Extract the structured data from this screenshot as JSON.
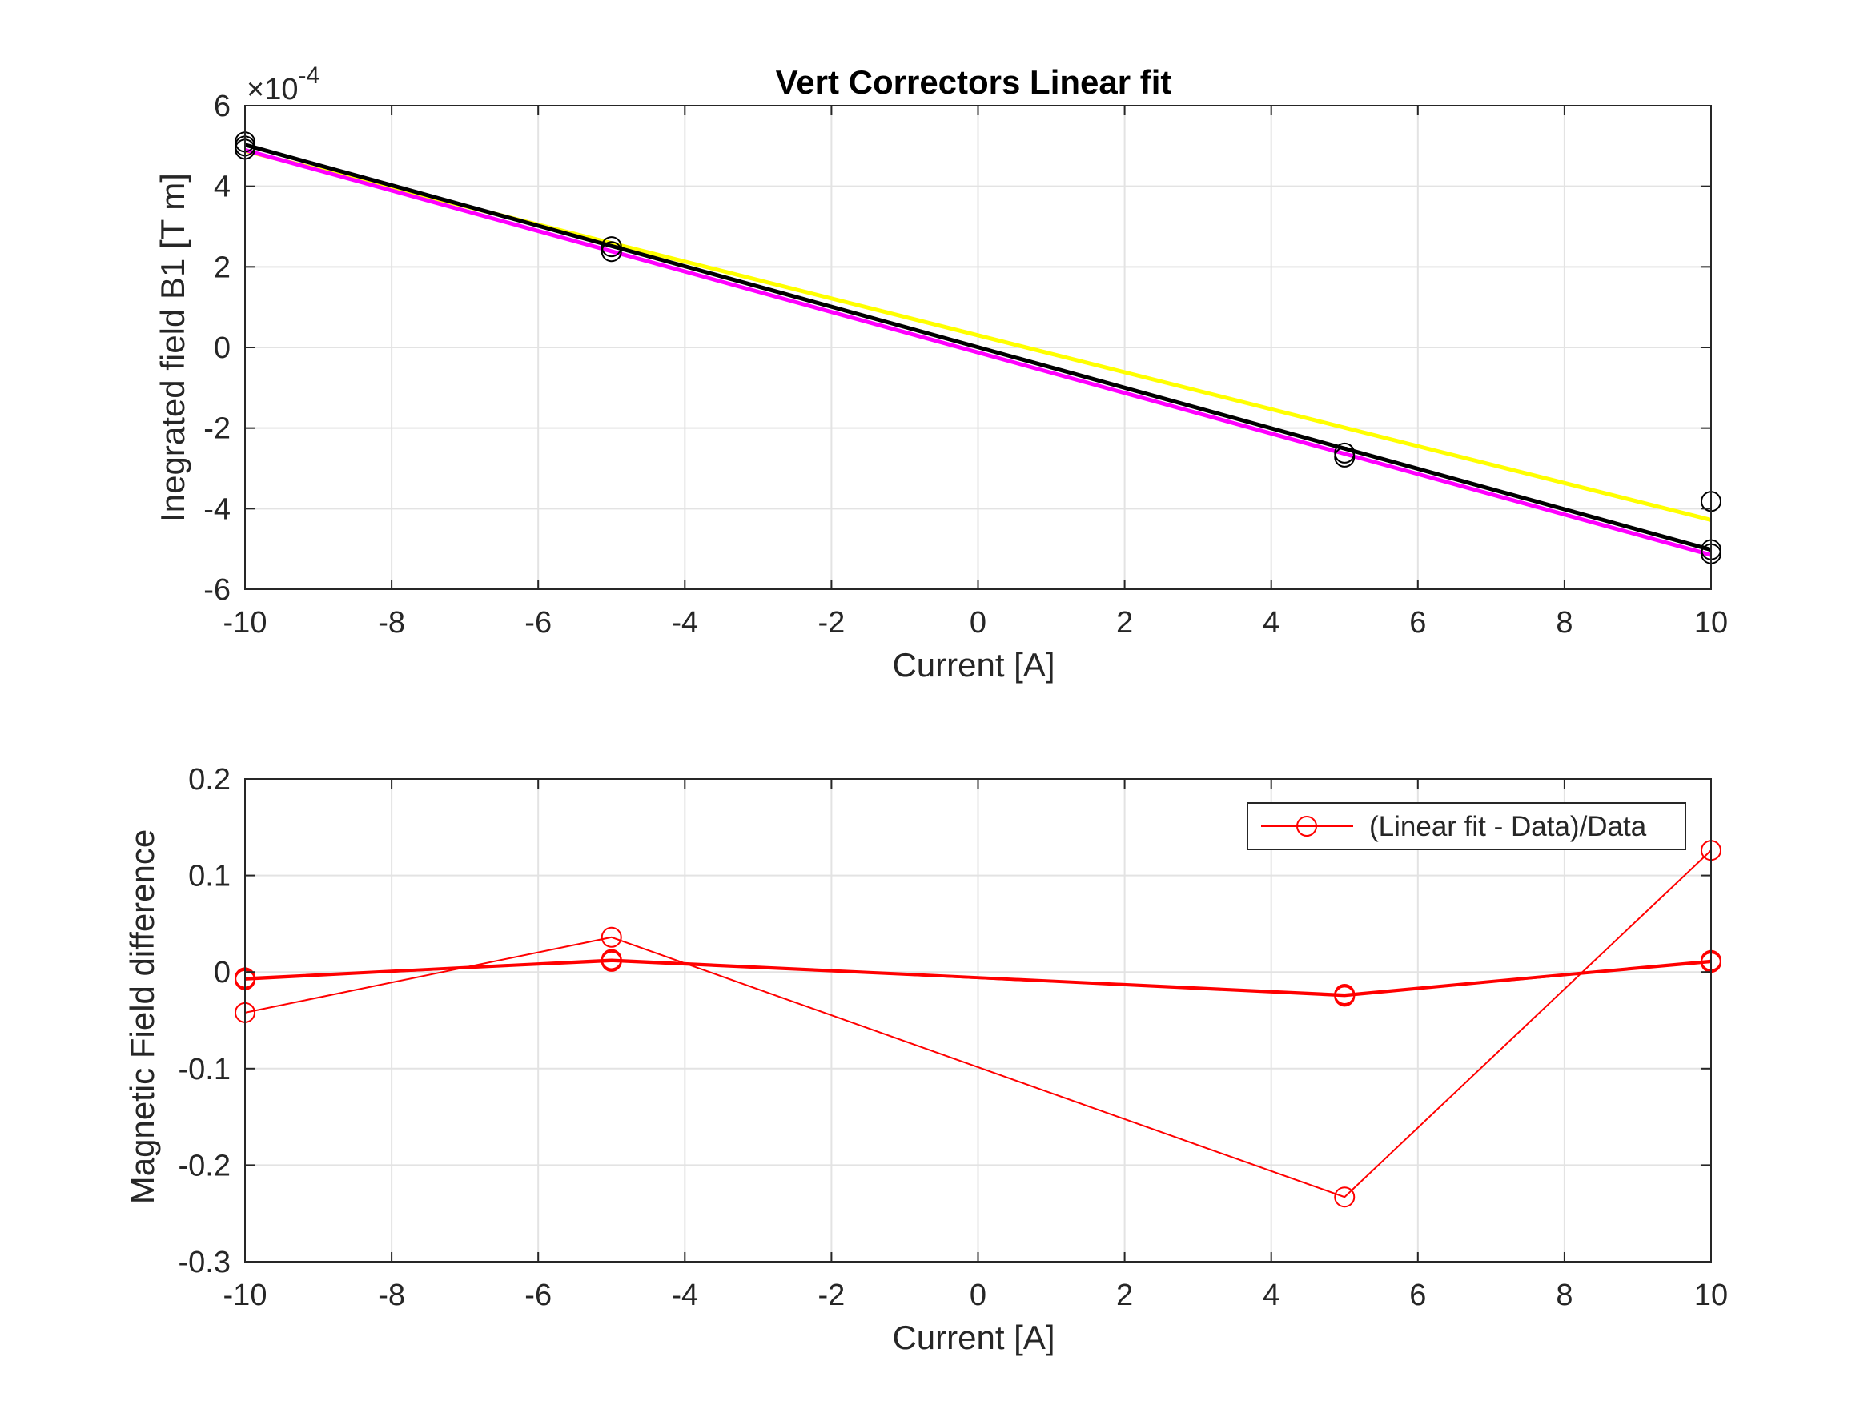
{
  "figure": {
    "background": "#ffffff"
  },
  "chart_data": [
    {
      "type": "line",
      "title": "Vert Correctors Linear fit",
      "xlabel": "Current [A]",
      "ylabel": "Inegrated field B1 [T m]",
      "exponent_label": {
        "base": "×10",
        "power": "-4"
      },
      "xlim": [
        -10,
        10
      ],
      "ylim": [
        -6,
        6
      ],
      "xticks": [
        -10,
        -8,
        -6,
        -4,
        -2,
        0,
        2,
        4,
        6,
        8,
        10
      ],
      "xtick_labels": [
        "-10",
        "-8",
        "-6",
        "-4",
        "-2",
        "0",
        "2",
        "4",
        "6",
        "8",
        "10"
      ],
      "yticks": [
        -6,
        -4,
        -2,
        0,
        2,
        4,
        6
      ],
      "ytick_labels": [
        "-6",
        "-4",
        "-2",
        "0",
        "2",
        "4",
        "6"
      ],
      "grid": true,
      "fit_lines": [
        {
          "name": "fit-yellow",
          "color": "#ffff00",
          "x": [
            -10,
            10
          ],
          "y": [
            4.88,
            -4.28
          ]
        },
        {
          "name": "fit-magenta",
          "color": "#ff00ff",
          "x": [
            -10,
            10
          ],
          "y": [
            4.9,
            -5.15
          ]
        },
        {
          "name": "fit-black",
          "color": "#000000",
          "x": [
            -10,
            10
          ],
          "y": [
            5.03,
            -5.02
          ]
        }
      ],
      "points": {
        "x": [
          -10,
          -10,
          -10,
          -5,
          -5,
          5,
          5,
          10,
          10,
          10
        ],
        "y": [
          5.1,
          5.0,
          4.92,
          2.5,
          2.38,
          -2.62,
          -2.72,
          -3.82,
          -5.02,
          -5.12
        ],
        "marker": "circle",
        "color": "#000000"
      }
    },
    {
      "type": "line",
      "title": "",
      "xlabel": "Current [A]",
      "ylabel": "Magnetic Field difference",
      "xlim": [
        -10,
        10
      ],
      "ylim": [
        -0.3,
        0.2
      ],
      "xticks": [
        -10,
        -8,
        -6,
        -4,
        -2,
        0,
        2,
        4,
        6,
        8,
        10
      ],
      "xtick_labels": [
        "-10",
        "-8",
        "-6",
        "-4",
        "-2",
        "0",
        "2",
        "4",
        "6",
        "8",
        "10"
      ],
      "yticks": [
        -0.3,
        -0.2,
        -0.1,
        0,
        0.1,
        0.2
      ],
      "ytick_labels": [
        "-0.3",
        "-0.2",
        "-0.1",
        "0",
        "0.1",
        "0.2"
      ],
      "grid": true,
      "legend": {
        "label": "(Linear fit - Data)/Data",
        "location": "top-right"
      },
      "series": [
        {
          "name": "series-1",
          "color": "#ff0000",
          "x": [
            -10,
            -5,
            5,
            10
          ],
          "y": [
            -0.042,
            0.036,
            -0.233,
            0.126
          ]
        },
        {
          "name": "series-2",
          "color": "#ff0000",
          "x": [
            -10,
            -5,
            5,
            10
          ],
          "y": [
            -0.006,
            0.013,
            -0.023,
            0.012
          ]
        },
        {
          "name": "series-3",
          "color": "#ff0000",
          "x": [
            -10,
            -5,
            5,
            10
          ],
          "y": [
            -0.008,
            0.012,
            -0.025,
            0.011
          ]
        },
        {
          "name": "series-4",
          "color": "#ff0000",
          "x": [
            -10,
            -5,
            5,
            10
          ],
          "y": [
            -0.007,
            0.011,
            -0.024,
            0.01
          ]
        }
      ]
    }
  ]
}
